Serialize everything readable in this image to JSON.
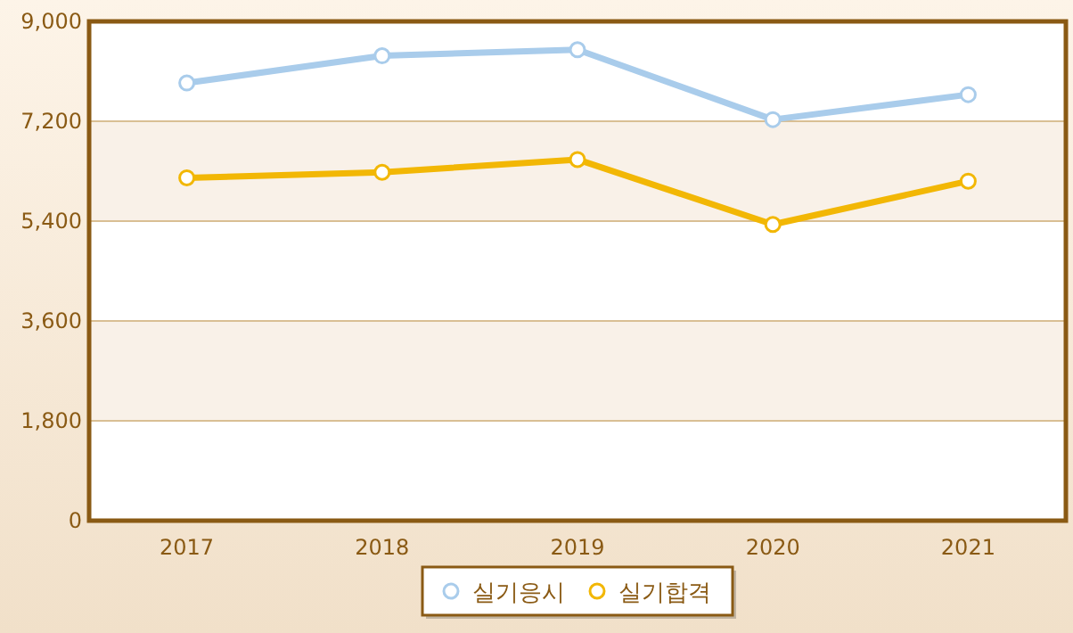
{
  "chart_data": {
    "type": "line",
    "categories": [
      "2017",
      "2018",
      "2019",
      "2020",
      "2021"
    ],
    "series": [
      {
        "name": "실기응시",
        "color": "#a9cceb",
        "values": [
          7890,
          8380,
          8490,
          7230,
          7680
        ]
      },
      {
        "name": "실기합격",
        "color": "#f2b705",
        "values": [
          6180,
          6280,
          6510,
          5340,
          6120
        ]
      }
    ],
    "ylim": [
      0,
      9000
    ],
    "yticks": [
      {
        "value": 0,
        "label": "0"
      },
      {
        "value": 1800,
        "label": "1,800"
      },
      {
        "value": 3600,
        "label": "3,600"
      },
      {
        "value": 5400,
        "label": "5,400"
      },
      {
        "value": 7200,
        "label": "7,200"
      },
      {
        "value": 9000,
        "label": "9,000"
      }
    ],
    "grid": "y",
    "legend": "bottom",
    "marker": "circle",
    "line_style": "solid"
  }
}
